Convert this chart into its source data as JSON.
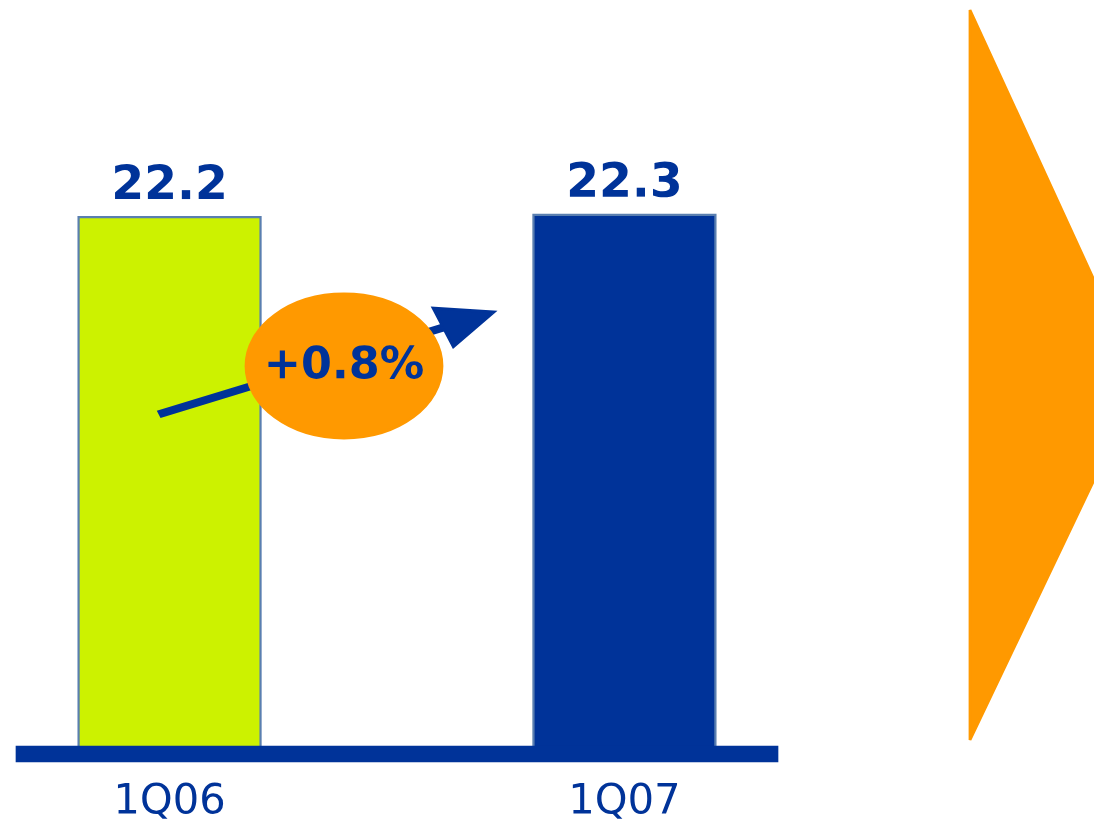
{
  "chart_data": {
    "type": "bar",
    "categories": [
      "1Q06",
      "1Q07"
    ],
    "values": [
      22.2,
      22.3
    ],
    "colors": [
      "#ccf200",
      "#003399"
    ],
    "data_labels": true,
    "tick_labels": "x",
    "grid": false,
    "legend": false,
    "annotations": [
      "+0.8%"
    ]
  }
}
